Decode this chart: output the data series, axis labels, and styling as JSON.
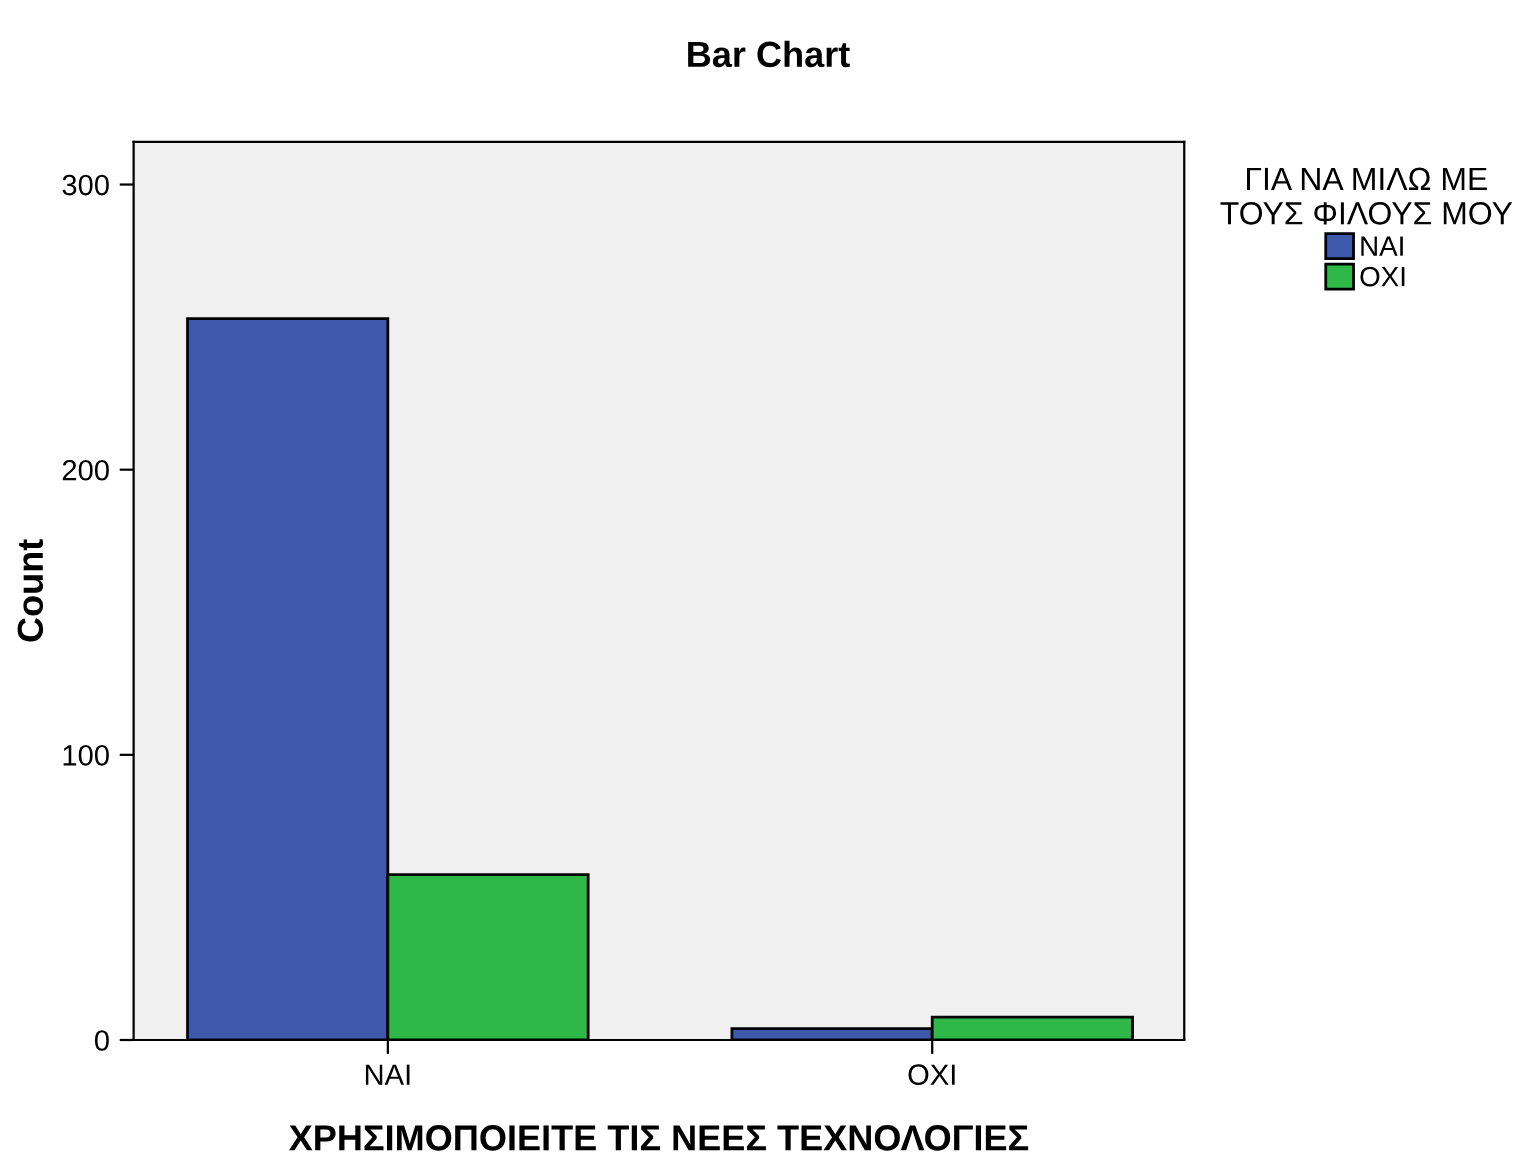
{
  "chart_data": {
    "type": "bar",
    "title": "Bar Chart",
    "xlabel": "ΧΡΗΣΙΜΟΠΟΙΕΙΤΕ ΤΙΣ ΝΕΕΣ ΤΕΧΝΟΛΟΓΙΕΣ",
    "ylabel": "Count",
    "legend_title": "ΓΙΑ ΝΑ ΜΙΛΩ ΜΕ\nΤΟΥΣ ΦΙΛΟΥΣ ΜΟΥ",
    "categories": [
      "ΝΑΙ",
      "ΟΧΙ"
    ],
    "series": [
      {
        "name": "ΝΑΙ",
        "color": "#3e58ac",
        "values": [
          253,
          4
        ]
      },
      {
        "name": "ΟΧΙ",
        "color": "#2eb848",
        "values": [
          58,
          8
        ]
      }
    ],
    "ylim": [
      0,
      315
    ],
    "yticks": [
      0,
      100,
      200,
      300
    ],
    "grid": false,
    "legend": "top right"
  }
}
